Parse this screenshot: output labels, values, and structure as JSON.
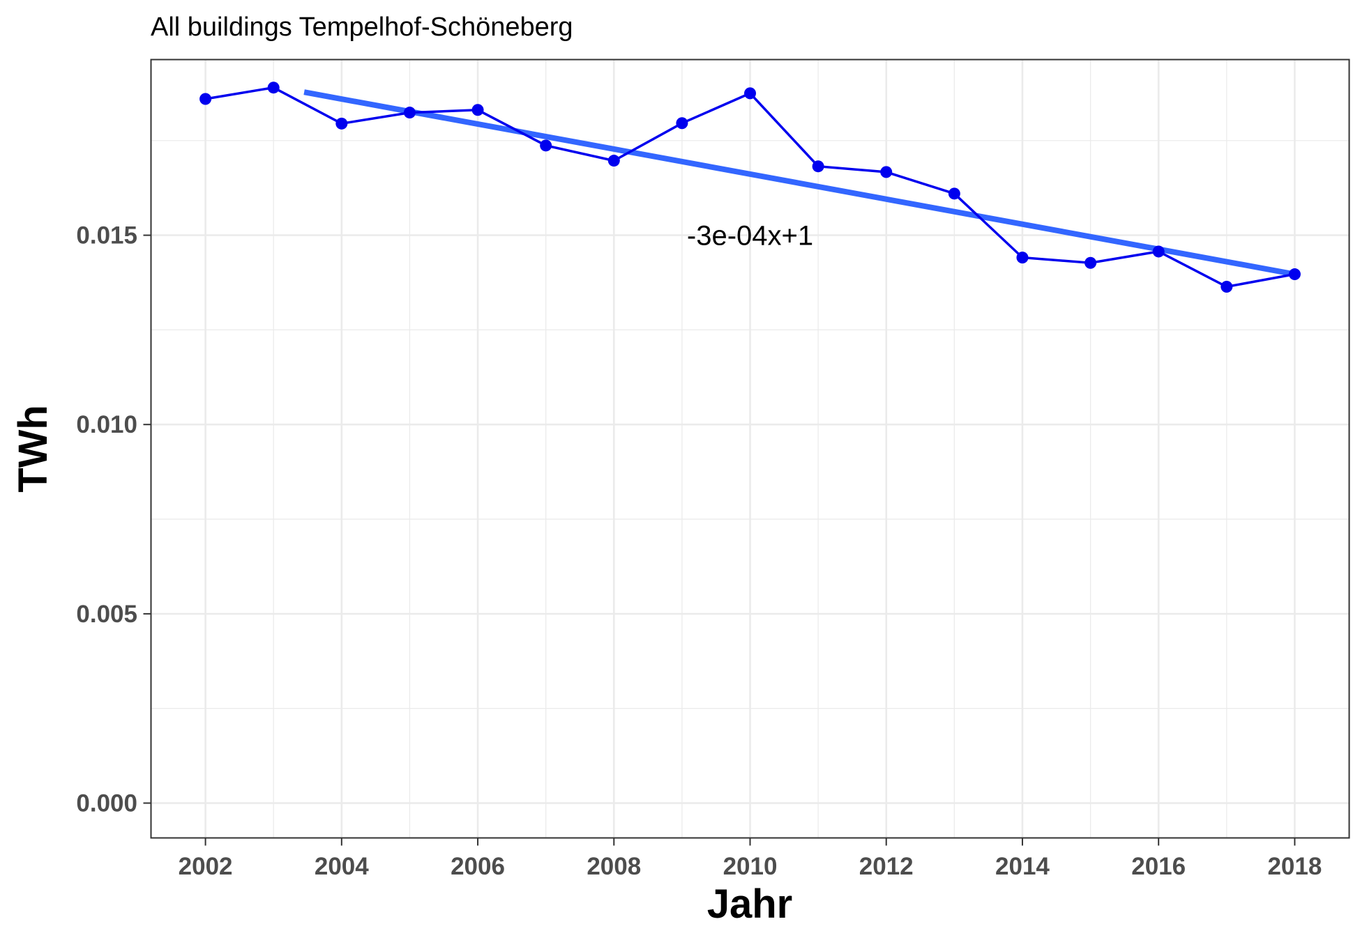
{
  "chart_data": {
    "type": "line",
    "title": "All buildings Tempelhof-Schöneberg",
    "xlabel": "Jahr",
    "ylabel": "TWh",
    "xlim": [
      2001.2,
      2018.8
    ],
    "ylim": [
      -0.00092,
      0.01964
    ],
    "x_ticks": [
      2002,
      2004,
      2006,
      2008,
      2010,
      2012,
      2014,
      2016,
      2018
    ],
    "x_tick_labels": [
      "2002",
      "2004",
      "2006",
      "2008",
      "2010",
      "2012",
      "2014",
      "2016",
      "2018"
    ],
    "y_ticks": [
      0.0,
      0.005,
      0.01,
      0.015
    ],
    "y_tick_labels": [
      "0.000",
      "0.005",
      "0.010",
      "0.015"
    ],
    "grid": true,
    "series": [
      {
        "x": [
          2002,
          2003,
          2004,
          2005,
          2006,
          2007,
          2008,
          2009,
          2010,
          2011,
          2012,
          2013,
          2014,
          2015,
          2016,
          2017,
          2018
        ],
        "values": [
          0.0186,
          0.0189,
          0.01795,
          0.01824,
          0.01831,
          0.01737,
          0.01697,
          0.01796,
          0.01875,
          0.01682,
          0.01667,
          0.0161,
          0.01441,
          0.01427,
          0.01457,
          0.01364,
          0.01397
        ],
        "color": "#0000ee"
      }
    ],
    "trend_line": {
      "x": [
        2003.45,
        2018
      ],
      "values": [
        0.01878,
        0.01397
      ],
      "color": "#3366ff"
    },
    "annotation": {
      "text": "-3e-04x+1",
      "x": 2010,
      "y": 0.015
    }
  }
}
